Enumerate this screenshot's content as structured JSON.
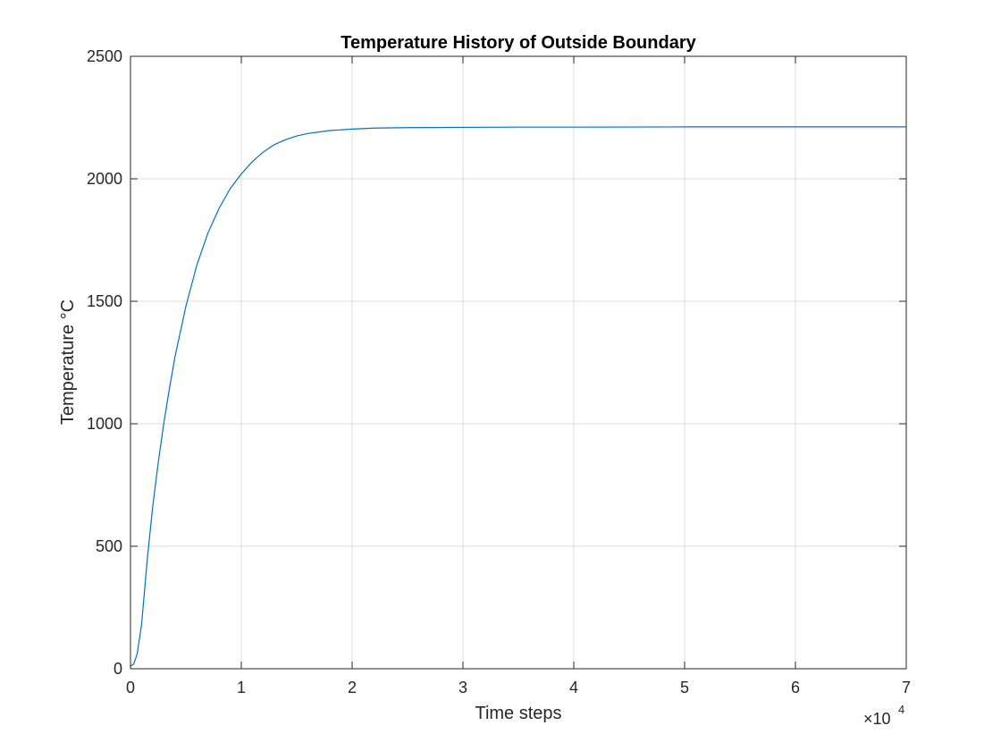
{
  "chart_data": {
    "type": "line",
    "title": "Temperature History of Outside Boundary",
    "xlabel": "Time steps",
    "ylabel": "Temperature °C",
    "x_exponent_label": "×10",
    "x_exponent_power": "4",
    "xlim": [
      0,
      70000
    ],
    "ylim": [
      0,
      2500
    ],
    "xticks": [
      0,
      10000,
      20000,
      30000,
      40000,
      50000,
      60000,
      70000
    ],
    "xtick_labels": [
      "0",
      "1",
      "2",
      "3",
      "4",
      "5",
      "6",
      "7"
    ],
    "yticks": [
      0,
      500,
      1000,
      1500,
      2000,
      2500
    ],
    "ytick_labels": [
      "0",
      "500",
      "1000",
      "1500",
      "2000",
      "2500"
    ],
    "grid": true,
    "series": [
      {
        "color": "#0072BD",
        "x": [
          0,
          300,
          600,
          1000,
          1500,
          2000,
          2500,
          3000,
          3500,
          4000,
          5000,
          6000,
          7000,
          8000,
          9000,
          10000,
          11000,
          12000,
          13000,
          14000,
          15000,
          16000,
          18000,
          20000,
          22000,
          25000,
          30000,
          35000,
          40000,
          50000,
          60000,
          70000
        ],
        "y": [
          10,
          20,
          60,
          180,
          440,
          660,
          840,
          1000,
          1140,
          1270,
          1480,
          1650,
          1780,
          1880,
          1960,
          2020,
          2070,
          2110,
          2140,
          2160,
          2175,
          2185,
          2197,
          2203,
          2207,
          2209,
          2210,
          2211,
          2211,
          2212,
          2212,
          2212
        ]
      }
    ]
  }
}
